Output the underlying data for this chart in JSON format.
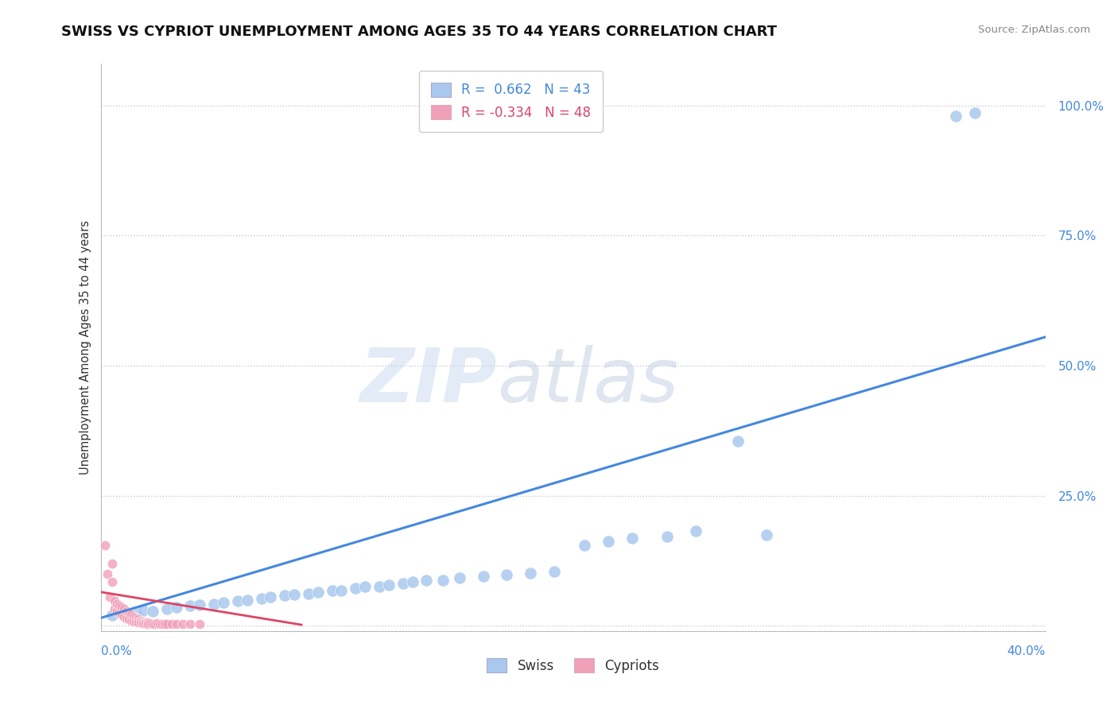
{
  "title": "SWISS VS CYPRIOT UNEMPLOYMENT AMONG AGES 35 TO 44 YEARS CORRELATION CHART",
  "source": "Source: ZipAtlas.com",
  "ylabel": "Unemployment Among Ages 35 to 44 years",
  "xlim": [
    0.0,
    0.4
  ],
  "ylim": [
    -0.01,
    1.08
  ],
  "yticks": [
    0.0,
    0.25,
    0.5,
    0.75,
    1.0
  ],
  "ytick_labels": [
    "",
    "25.0%",
    "50.0%",
    "75.0%",
    "100.0%"
  ],
  "grid_color": "#c8c8d8",
  "background_color": "#ffffff",
  "watermark_zip": "ZIP",
  "watermark_atlas": "atlas",
  "legend_r_swiss": "R =  0.662",
  "legend_n_swiss": "N = 43",
  "legend_r_cypriot": "R = -0.334",
  "legend_n_cypriot": "N = 48",
  "swiss_color": "#aac8ee",
  "cypriot_color": "#f0a0b8",
  "swiss_line_color": "#4488dd",
  "cypriot_line_color": "#dd4466",
  "swiss_scatter_x": [
    0.005,
    0.01,
    0.015,
    0.018,
    0.022,
    0.028,
    0.032,
    0.038,
    0.042,
    0.048,
    0.052,
    0.058,
    0.062,
    0.068,
    0.072,
    0.078,
    0.082,
    0.088,
    0.092,
    0.098,
    0.102,
    0.108,
    0.112,
    0.118,
    0.122,
    0.128,
    0.132,
    0.138,
    0.145,
    0.152,
    0.162,
    0.172,
    0.182,
    0.192,
    0.205,
    0.215,
    0.225,
    0.24,
    0.252,
    0.27,
    0.282,
    0.362,
    0.37
  ],
  "swiss_scatter_y": [
    0.02,
    0.022,
    0.025,
    0.03,
    0.028,
    0.032,
    0.035,
    0.038,
    0.04,
    0.042,
    0.045,
    0.048,
    0.05,
    0.052,
    0.055,
    0.058,
    0.06,
    0.062,
    0.065,
    0.068,
    0.068,
    0.072,
    0.075,
    0.075,
    0.078,
    0.082,
    0.085,
    0.088,
    0.088,
    0.092,
    0.095,
    0.098,
    0.102,
    0.105,
    0.155,
    0.162,
    0.168,
    0.172,
    0.182,
    0.355,
    0.175,
    0.98,
    0.985
  ],
  "cypriot_scatter_x": [
    0.002,
    0.003,
    0.004,
    0.005,
    0.005,
    0.006,
    0.006,
    0.007,
    0.007,
    0.008,
    0.008,
    0.009,
    0.009,
    0.01,
    0.01,
    0.011,
    0.011,
    0.012,
    0.012,
    0.013,
    0.013,
    0.014,
    0.014,
    0.015,
    0.015,
    0.016,
    0.016,
    0.017,
    0.017,
    0.018,
    0.018,
    0.019,
    0.019,
    0.02,
    0.02,
    0.021,
    0.022,
    0.023,
    0.024,
    0.025,
    0.026,
    0.027,
    0.028,
    0.03,
    0.032,
    0.035,
    0.038,
    0.042
  ],
  "cypriot_scatter_y": [
    0.155,
    0.1,
    0.055,
    0.085,
    0.12,
    0.048,
    0.032,
    0.042,
    0.028,
    0.038,
    0.025,
    0.035,
    0.022,
    0.032,
    0.018,
    0.028,
    0.015,
    0.025,
    0.012,
    0.022,
    0.01,
    0.018,
    0.008,
    0.015,
    0.008,
    0.012,
    0.007,
    0.01,
    0.006,
    0.008,
    0.005,
    0.007,
    0.005,
    0.006,
    0.004,
    0.005,
    0.004,
    0.004,
    0.005,
    0.004,
    0.004,
    0.004,
    0.004,
    0.004,
    0.004,
    0.004,
    0.004,
    0.004
  ],
  "swiss_line_x": [
    0.0,
    0.4
  ],
  "swiss_line_y": [
    0.015,
    0.555
  ],
  "cypriot_line_x": [
    0.0,
    0.085
  ],
  "cypriot_line_y": [
    0.065,
    0.002
  ]
}
